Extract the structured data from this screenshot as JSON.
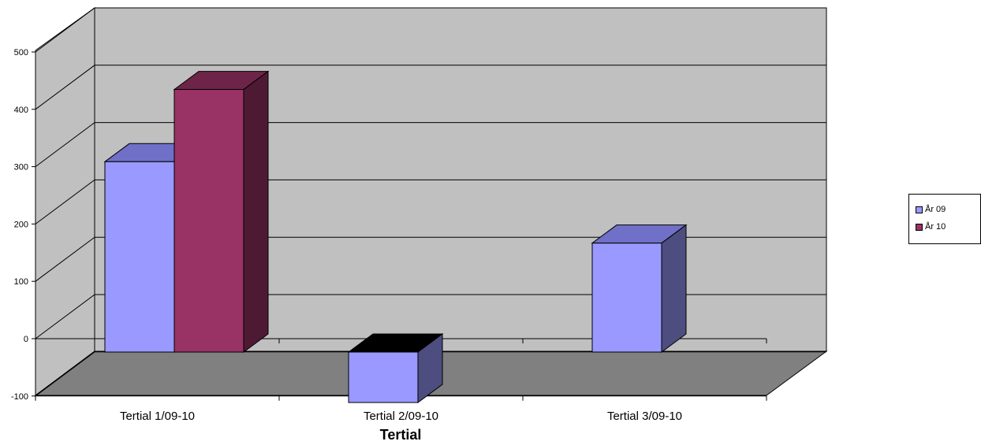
{
  "chart_data": {
    "type": "bar",
    "categories": [
      "Tertial 1/09-10",
      "Tertial 2/09-10",
      "Tertial 3/09-10"
    ],
    "series": [
      {
        "name": "År 09",
        "values": [
          332,
          -88,
          190
        ],
        "color": "#9999ff",
        "top_color": "#7070c8",
        "side_color": "#4d4d80"
      },
      {
        "name": "År 10",
        "values": [
          458,
          null,
          null
        ],
        "color": "#993366",
        "top_color": "#6e2448",
        "side_color": "#4e1a33"
      }
    ],
    "xlabel": "Tertial",
    "ylabel": "",
    "ylim": [
      -100,
      500
    ],
    "yticks": [
      -100,
      0,
      100,
      200,
      300,
      400,
      500
    ],
    "grid": true,
    "legend_position": "right",
    "style": "3d-bar",
    "colors": {
      "back_wall": "#c0c0c0",
      "floor": "#808080",
      "grid": "#000000"
    }
  }
}
